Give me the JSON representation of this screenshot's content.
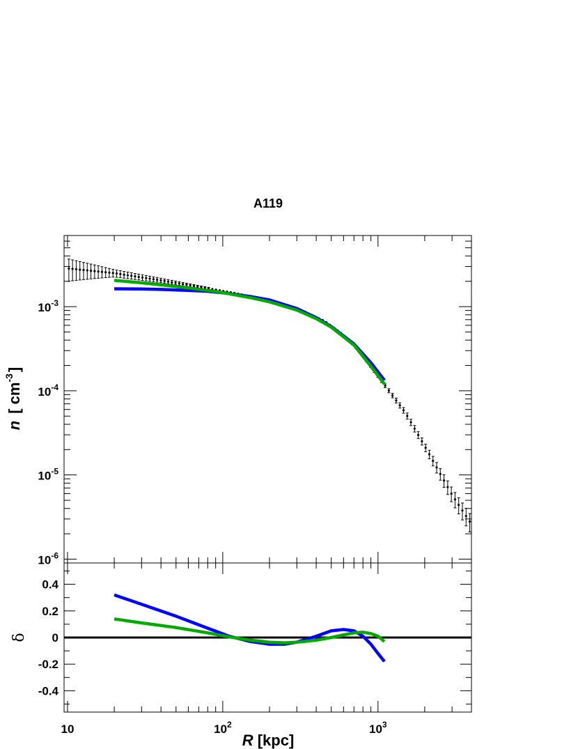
{
  "chart_data": [
    {
      "panel": "profile",
      "type": "scatter",
      "title": "A119",
      "xlabel_italic": "R",
      "xlabel_rest": " [kpc]",
      "ylabel_italic": "n",
      "ylabel_rest": "[ cm",
      "ylabel_exp": "-3",
      "ylabel_close": "]",
      "xscale": "log",
      "yscale": "log",
      "xlim": [
        9.5,
        4000
      ],
      "ylim": [
        9e-07,
        0.007
      ],
      "x_tick_labels": [
        {
          "x": 10,
          "base": "10",
          "exp": ""
        },
        {
          "x": 100,
          "base": "10",
          "exp": "2"
        },
        {
          "x": 1000,
          "base": "10",
          "exp": "3"
        }
      ],
      "y_tick_labels": [
        {
          "y": 0.001,
          "base": "10",
          "exp": "-3"
        },
        {
          "y": 0.0001,
          "base": "10",
          "exp": "-4"
        },
        {
          "y": 1e-05,
          "base": "10",
          "exp": "-5"
        },
        {
          "y": 1e-06,
          "base": "10",
          "exp": "-6"
        }
      ],
      "data_points": {
        "color": "#000000",
        "x_min": 10.2,
        "x_max": 3900,
        "n": 110,
        "anchors_x": [
          10,
          20,
          40,
          80,
          120,
          200,
          300,
          450,
          600,
          800,
          1100,
          1500,
          2000,
          3000,
          4000
        ],
        "anchors_y": [
          0.00285,
          0.0025,
          0.00205,
          0.00165,
          0.00145,
          0.00117,
          0.00095,
          0.00068,
          0.00046,
          0.00026,
          0.000118,
          5.5e-05,
          2.2e-05,
          5.8e-06,
          2.6e-06
        ],
        "error_frac": [
          0.3,
          0.1,
          0.06,
          0.03,
          0.02,
          0.02,
          0.02,
          0.02,
          0.02,
          0.03,
          0.05,
          0.08,
          0.1,
          0.2,
          0.25
        ]
      },
      "series": [
        {
          "color": "#0000ff",
          "x": [
            20,
            30,
            40,
            60,
            80,
            100,
            150,
            200,
            300,
            400,
            500,
            700,
            900,
            1100
          ],
          "y": [
            0.00163,
            0.00162,
            0.0016,
            0.00156,
            0.00152,
            0.00146,
            0.00132,
            0.0012,
            0.00095,
            0.00074,
            0.00058,
            0.00036,
            0.000215,
            0.000133
          ]
        },
        {
          "color": "#00aa00",
          "x": [
            20,
            30,
            40,
            60,
            80,
            100,
            150,
            200,
            300,
            400,
            500,
            700,
            900,
            1100
          ],
          "y": [
            0.00205,
            0.00192,
            0.00182,
            0.00167,
            0.00156,
            0.00147,
            0.00128,
            0.00114,
            0.00091,
            0.00072,
            0.00057,
            0.00035,
            0.000195,
            0.00012
          ]
        }
      ]
    },
    {
      "panel": "residual",
      "type": "line",
      "ylabel": "δ",
      "xscale": "log",
      "xlim": [
        9.5,
        4000
      ],
      "ylim": [
        -0.56,
        0.56
      ],
      "y_tick_labels": [
        "0.4",
        "0.2",
        "0",
        "-0.2",
        "-0.4"
      ],
      "y_tick_values": [
        0.4,
        0.2,
        0,
        -0.2,
        -0.4
      ],
      "zero_line_color": "#000000",
      "series": [
        {
          "color": "#0000ff",
          "x": [
            20,
            30,
            50,
            80,
            110,
            150,
            200,
            250,
            300,
            400,
            500,
            600,
            700,
            800,
            900,
            1000,
            1100
          ],
          "y": [
            0.32,
            0.25,
            0.16,
            0.07,
            0.01,
            -0.03,
            -0.05,
            -0.05,
            -0.035,
            0.01,
            0.05,
            0.06,
            0.05,
            0.01,
            -0.05,
            -0.12,
            -0.18
          ]
        },
        {
          "color": "#00aa00",
          "x": [
            20,
            30,
            50,
            80,
            110,
            150,
            200,
            250,
            300,
            400,
            500,
            600,
            700,
            800,
            900,
            1000,
            1100
          ],
          "y": [
            0.14,
            0.11,
            0.075,
            0.035,
            0.005,
            -0.02,
            -0.035,
            -0.04,
            -0.035,
            -0.02,
            0.0,
            0.02,
            0.035,
            0.04,
            0.03,
            0.01,
            -0.03
          ]
        }
      ]
    }
  ]
}
